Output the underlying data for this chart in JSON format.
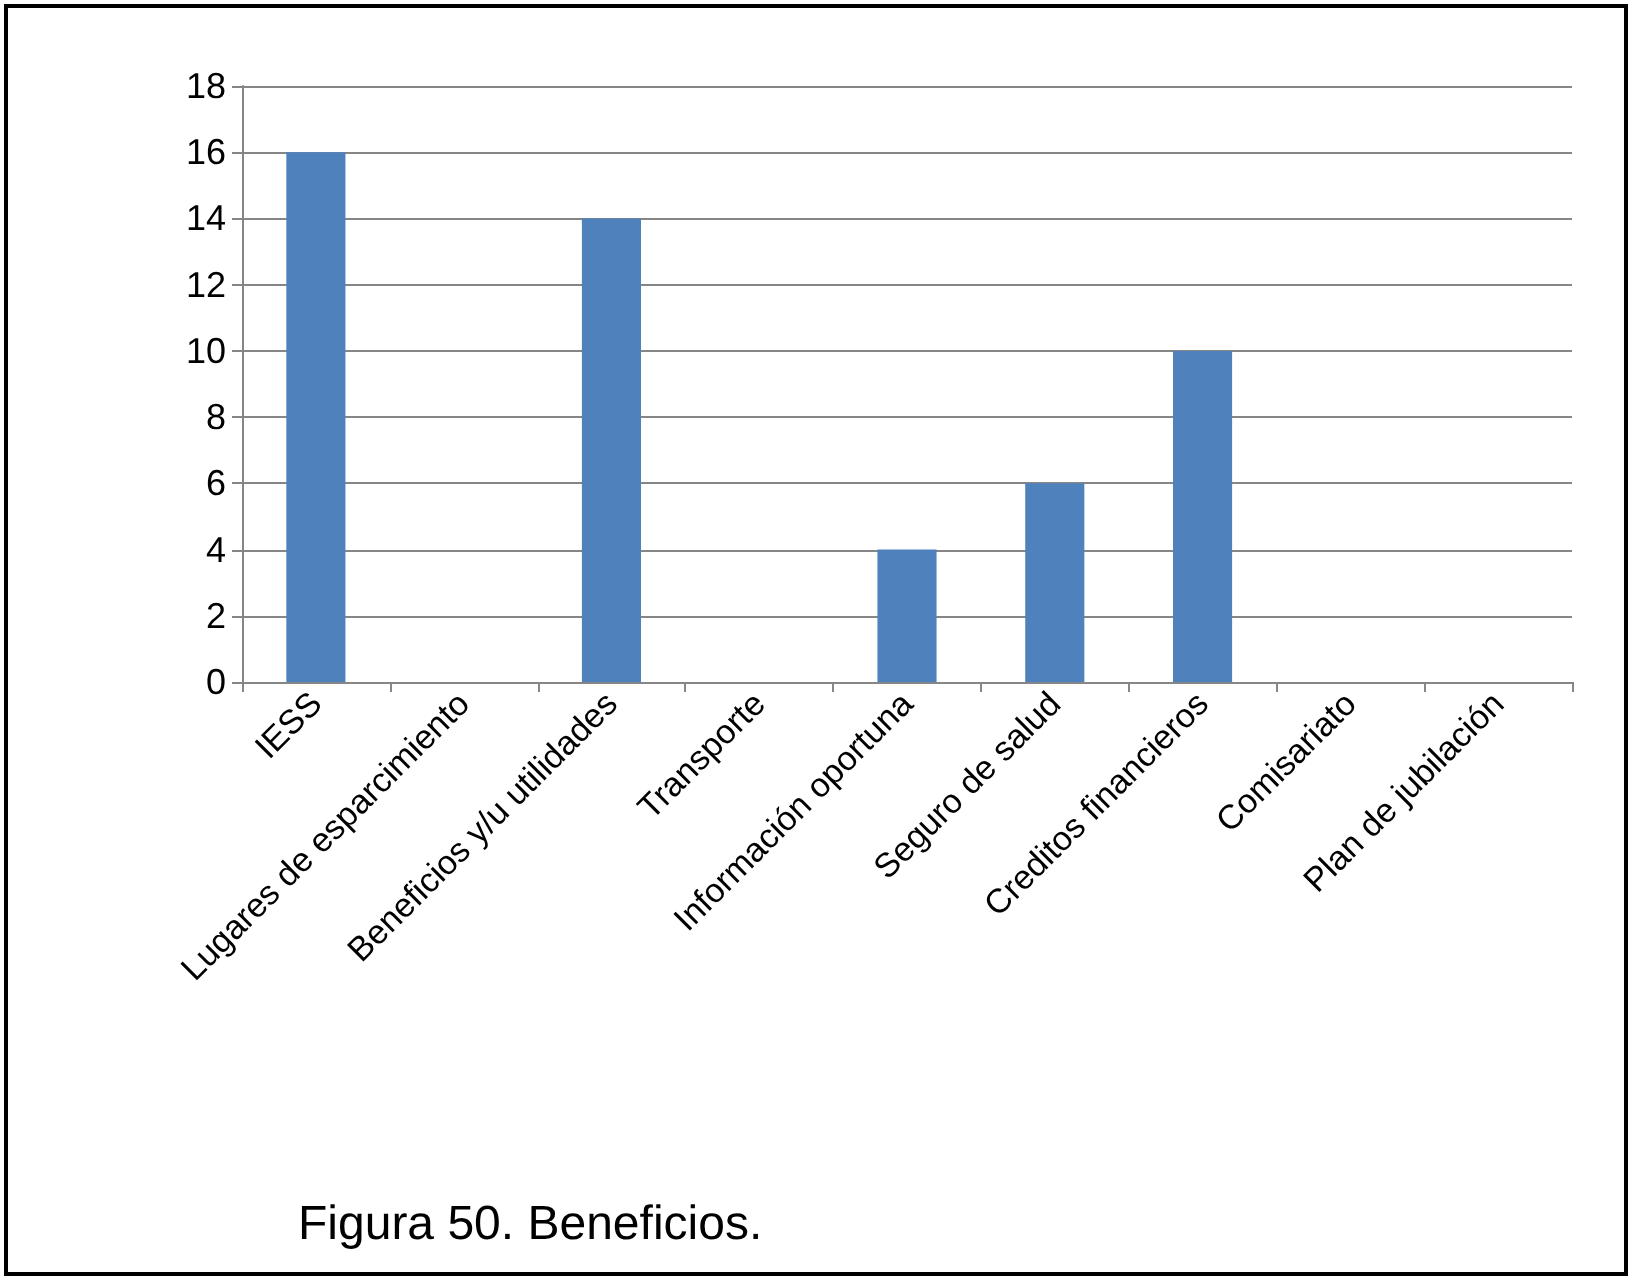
{
  "chart_data": {
    "type": "bar",
    "categories": [
      "IESS",
      "Lugares de esparcimiento",
      "Beneficios y/u utilidades",
      "Transporte",
      "Información oportuna",
      "Seguro de salud",
      "Creditos financieros",
      "Comisariato",
      "Plan de jubilación"
    ],
    "values": [
      16,
      0,
      14,
      0,
      4,
      6,
      10,
      0,
      0
    ],
    "color": "#4f81bd",
    "ylim": [
      0,
      18
    ],
    "yticks": [
      0,
      2,
      4,
      6,
      8,
      10,
      12,
      14,
      16,
      18
    ],
    "grid": "y",
    "annotations": [
      "Figura 50. Beneficios."
    ]
  }
}
